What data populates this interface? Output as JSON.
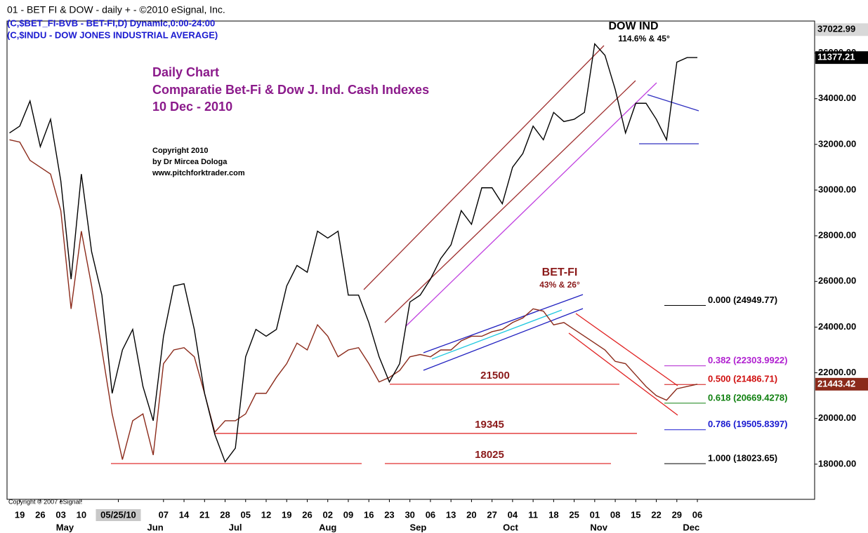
{
  "chart_data": {
    "type": "line",
    "header": "01 - BET FI & DOW -  daily + - ©2010 eSignal, Inc.",
    "symbols": [
      "(C,$BET_FI-BVB - BET-FI,D) Dynamic,0:00-24:00",
      "(C,$INDU - DOW JONES INDUSTRIAL AVERAGE)"
    ],
    "title": [
      "Daily Chart",
      "Comparatie Bet-Fi & Dow J. Ind. Cash Indexes",
      "10 Dec - 2010"
    ],
    "copyright": [
      "Copyright 2010",
      "by Dr Mircea Dologa",
      "www.pitchforktrader.com"
    ],
    "footer": "Copyright © 2007 eSignal.",
    "annotations": [
      {
        "text": "DOW IND",
        "color": "#000000"
      },
      {
        "text": "114.6% & 45°",
        "color": "#000000"
      },
      {
        "text": "BET-FI",
        "color": "#8b1a1a"
      },
      {
        "text": "43% & 26°",
        "color": "#8b1a1a"
      }
    ],
    "x": [
      -0.5,
      0,
      0.5,
      1,
      1.5,
      2,
      2.5,
      3,
      3.5,
      4,
      4.5,
      5,
      5.5,
      6,
      6.5,
      7,
      7.5,
      8,
      8.5,
      9,
      9.5,
      10,
      10.5,
      11,
      11.5,
      12,
      12.5,
      13,
      13.5,
      14,
      14.5,
      15,
      15.5,
      16,
      16.5,
      17,
      17.5,
      18,
      18.5,
      19,
      19.5,
      20,
      20.5,
      21,
      21.5,
      22,
      22.5,
      23,
      23.5,
      24,
      24.5,
      25,
      25.5,
      26,
      26.5,
      27,
      27.5,
      28,
      28.5,
      29,
      29.5,
      30,
      30.5,
      31,
      31.5,
      32,
      32.5,
      33
    ],
    "series": [
      {
        "name": "BET-FI",
        "color": "#8b2a1a",
        "last_label": "21443.42",
        "values": [
          32200,
          32100,
          31300,
          31000,
          30700,
          29100,
          24800,
          28200,
          25800,
          23000,
          20200,
          18200,
          19900,
          20200,
          18400,
          22400,
          23000,
          23100,
          22700,
          21100,
          19400,
          19900,
          19900,
          20200,
          21100,
          21100,
          21800,
          22400,
          23300,
          23000,
          24100,
          23600,
          22700,
          23000,
          23100,
          22400,
          21600,
          21800,
          22100,
          22700,
          22800,
          22700,
          23000,
          23000,
          23400,
          23600,
          23600,
          23800,
          23900,
          24200,
          24400,
          24800,
          24700,
          24100,
          24200,
          23900,
          23600,
          23300,
          23000,
          22500,
          22400,
          21900,
          21400,
          21000,
          20800,
          21300,
          21400,
          21500
        ]
      },
      {
        "name": "DOW IND",
        "color": "#000000",
        "last_label": "11377.21",
        "values": [
          32500,
          32800,
          33900,
          31900,
          33100,
          30400,
          26100,
          30700,
          27300,
          25400,
          21100,
          23000,
          23900,
          21400,
          19900,
          23600,
          25800,
          25900,
          23900,
          21100,
          19300,
          18100,
          18700,
          22700,
          23900,
          23600,
          23900,
          25800,
          26700,
          26400,
          28200,
          27900,
          28200,
          25400,
          25400,
          24200,
          22700,
          21600,
          22400,
          25100,
          25400,
          26100,
          27000,
          27600,
          29100,
          28500,
          30100,
          30100,
          29400,
          31000,
          31600,
          32800,
          32200,
          33400,
          33000,
          33100,
          33400,
          36400,
          35900,
          34400,
          32500,
          33800,
          33800,
          33100,
          32200,
          35600,
          35800,
          35800
        ]
      }
    ],
    "xlim": [
      -0.62,
      38.71
    ],
    "xticks": [
      {
        "value": 0,
        "label": "19"
      },
      {
        "value": 1,
        "label": "26"
      },
      {
        "value": 2,
        "label": "03"
      },
      {
        "value": 3,
        "label": "10"
      },
      {
        "value": 4.8,
        "label": "05/25/10"
      },
      {
        "value": 7,
        "label": "07"
      },
      {
        "value": 8,
        "label": "14"
      },
      {
        "value": 9,
        "label": "21"
      },
      {
        "value": 10,
        "label": "28"
      },
      {
        "value": 11,
        "label": "05"
      },
      {
        "value": 12,
        "label": "12"
      },
      {
        "value": 13,
        "label": "19"
      },
      {
        "value": 14,
        "label": "26"
      },
      {
        "value": 15,
        "label": "02"
      },
      {
        "value": 16,
        "label": "09"
      },
      {
        "value": 17,
        "label": "16"
      },
      {
        "value": 18,
        "label": "23"
      },
      {
        "value": 19,
        "label": "30"
      },
      {
        "value": 20,
        "label": "06"
      },
      {
        "value": 21,
        "label": "13"
      },
      {
        "value": 22,
        "label": "20"
      },
      {
        "value": 23,
        "label": "27"
      },
      {
        "value": 24,
        "label": "04"
      },
      {
        "value": 25,
        "label": "11"
      },
      {
        "value": 26,
        "label": "18"
      },
      {
        "value": 27,
        "label": "25"
      },
      {
        "value": 28,
        "label": "01"
      },
      {
        "value": 29,
        "label": "08"
      },
      {
        "value": 30,
        "label": "15"
      },
      {
        "value": 31,
        "label": "22"
      },
      {
        "value": 32,
        "label": "29"
      },
      {
        "value": 33,
        "label": "06"
      }
    ],
    "month_labels": [
      {
        "value": 2.2,
        "label": "May"
      },
      {
        "value": 6.6,
        "label": "Jun"
      },
      {
        "value": 10.5,
        "label": "Jul"
      },
      {
        "value": 15,
        "label": "Aug"
      },
      {
        "value": 19.4,
        "label": "Sep"
      },
      {
        "value": 23.9,
        "label": "Oct"
      },
      {
        "value": 28.2,
        "label": "Nov"
      },
      {
        "value": 32.7,
        "label": "Dec"
      }
    ],
    "ylim": [
      16460,
      37400
    ],
    "yticks": [
      {
        "value": 18000,
        "label": "18000.00"
      },
      {
        "value": 20000,
        "label": "20000.00"
      },
      {
        "value": 22000,
        "label": "22000.00"
      },
      {
        "value": 24000,
        "label": "24000.00"
      },
      {
        "value": 26000,
        "label": "26000.00"
      },
      {
        "value": 28000,
        "label": "28000.00"
      },
      {
        "value": 30000,
        "label": "30000.00"
      },
      {
        "value": 32000,
        "label": "32000.00"
      },
      {
        "value": 34000,
        "label": "34000.00"
      },
      {
        "value": 36000,
        "label": "36000.00"
      }
    ],
    "ylim_label": {
      "value": 37022.99,
      "label": "37022.99"
    },
    "levels": [
      {
        "value": 21500,
        "label": "21500"
      },
      {
        "value": 19345,
        "label": "19345"
      },
      {
        "value": 18025,
        "label": "18025"
      }
    ],
    "fib_levels": [
      {
        "value": 24949.77,
        "label": "0.000 (24949.77)",
        "color": "#000000"
      },
      {
        "value": 22303.9922,
        "label": "0.382 (22303.9922)",
        "color": "#b020d0"
      },
      {
        "value": 21486.71,
        "label": "0.500 (21486.71)",
        "color": "#d01010"
      },
      {
        "value": 20669.4278,
        "label": "0.618 (20669.4278)",
        "color": "#108010"
      },
      {
        "value": 19505.8397,
        "label": "0.786 (19505.8397)",
        "color": "#1a1ad0"
      },
      {
        "value": 18023.65,
        "label": "1.000 (18023.65)",
        "color": "#000000"
      }
    ]
  }
}
